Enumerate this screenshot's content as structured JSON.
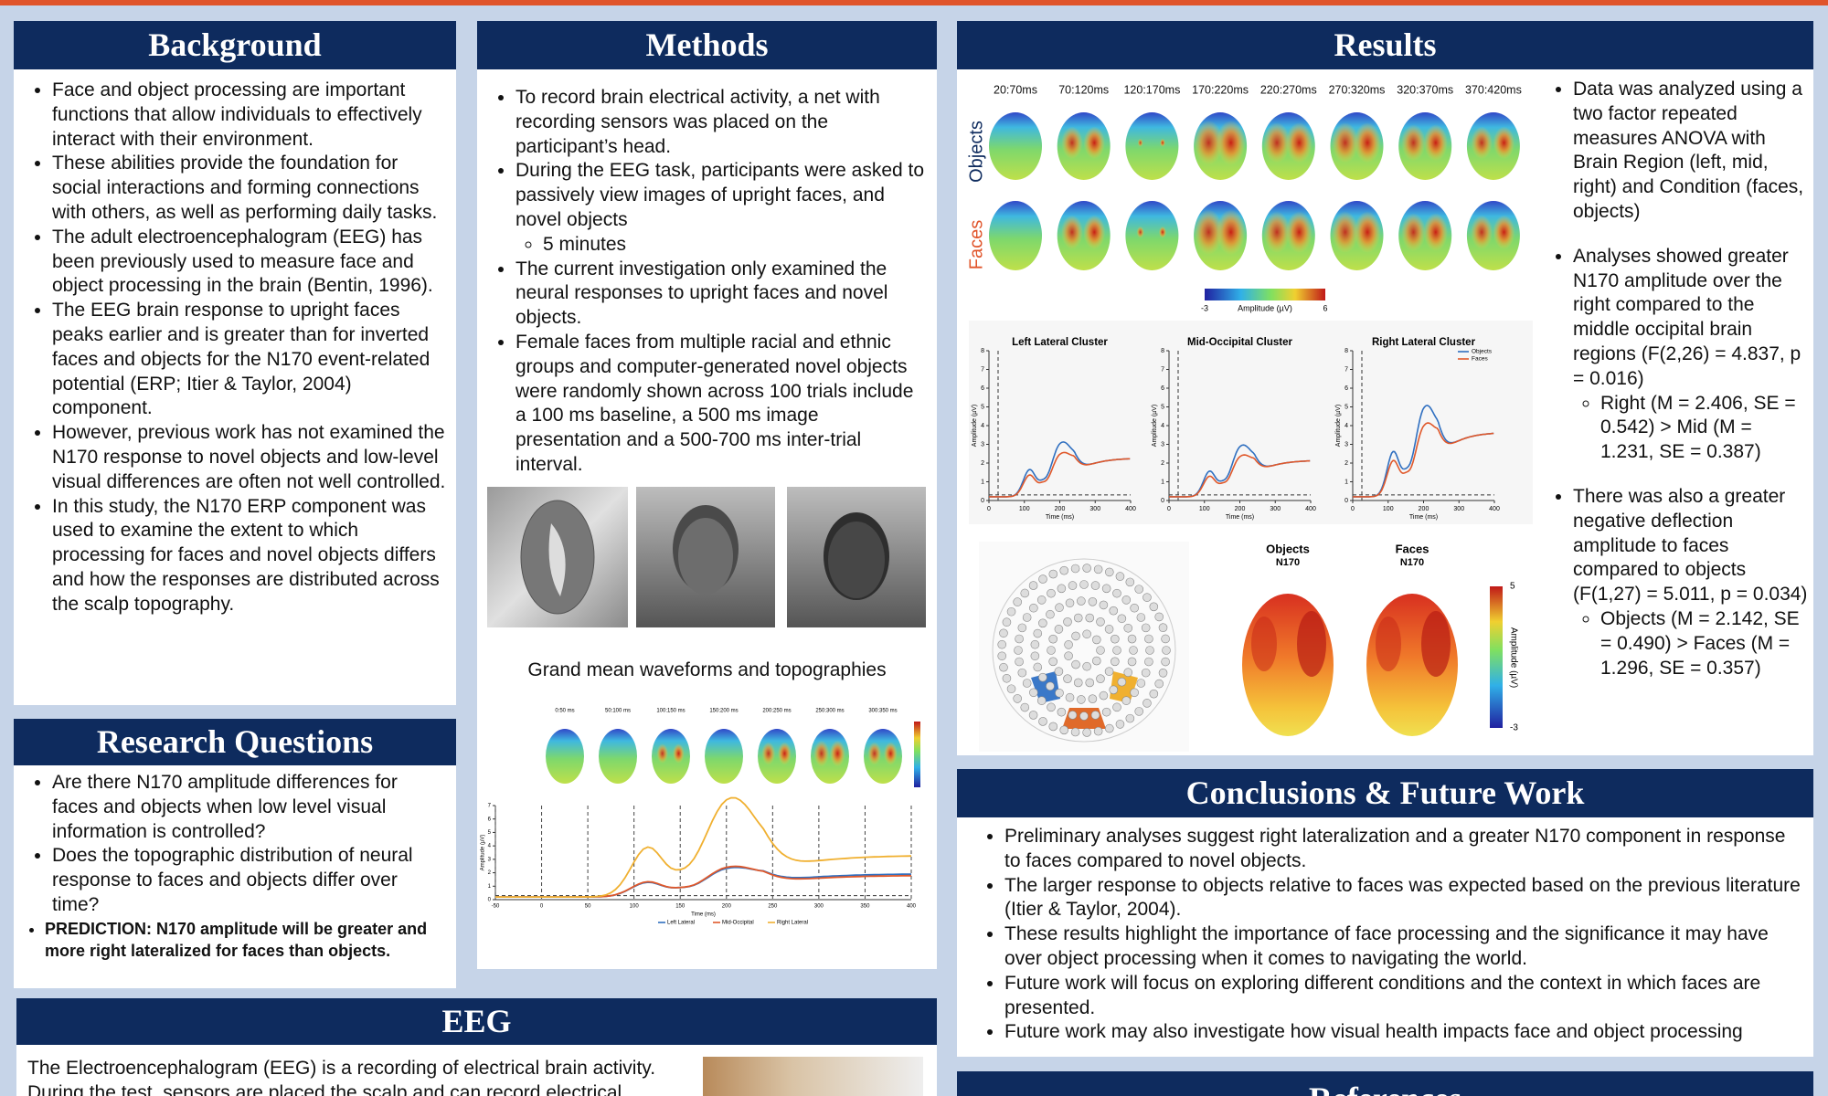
{
  "background": {
    "title": "Background",
    "items": [
      {
        "text": "Face and object processing are important functions that allow individuals to effectively interact with their environment."
      },
      {
        "text": "These abilities provide the foundation for social interactions and forming connections with others, as well as performing daily tasks."
      },
      {
        "text": "The adult electroencephalogram (EEG) has been previously used to measure face and object processing in the brain (Bentin, 1996)."
      },
      {
        "text": "The EEG brain response to upright faces peaks earlier and is greater than for inverted faces and objects for the N170 event-related potential (ERP; Itier & Taylor, 2004) component."
      },
      {
        "text": "However, previous work has not examined the N170 response to novel objects and low-level visual differences are often not well controlled."
      },
      {
        "text": "In this study, the N170 ERP component was used to examine the extent to which processing for faces and novel objects differs and how the responses are distributed across the scalp topography."
      }
    ]
  },
  "research_questions": {
    "title": "Research Questions",
    "items": [
      {
        "text": "Are there N170 amplitude differences for faces and objects when low level visual information is controlled?"
      },
      {
        "text": "Does the topographic distribution of neural response to faces and objects differ over time?"
      }
    ],
    "prediction": "PREDICTION: N170 amplitude will be greater and more right lateralized for faces than objects."
  },
  "methods": {
    "title": "Methods",
    "items": [
      {
        "text": "To record brain electrical activity, a net with recording sensors was placed on the participant’s head."
      },
      {
        "text": "During the EEG task, participants were asked to passively view images of upright faces, and novel objects",
        "sub": [
          "5 minutes"
        ]
      },
      {
        "text": "The current investigation only examined the neural responses to upright faces and novel objects."
      },
      {
        "text": "Female faces from multiple racial and ethnic groups and computer-generated novel objects were randomly shown across 100 trials include a 100 ms baseline, a 500 ms image presentation and a 500-700 ms inter-trial interval."
      }
    ],
    "figure_caption": "Grand mean waveforms and topographies",
    "figure": {
      "time_windows": [
        "0:50 ms",
        "50:100 ms",
        "100:150 ms",
        "150:200 ms",
        "200:250 ms",
        "250:300 ms",
        "300:350 ms"
      ],
      "legend": [
        "Left Lateral",
        "Mid-Occipital",
        "Right Lateral"
      ],
      "x_label": "Time (ms)",
      "y_label": "Amplitude (µV)",
      "xticks": [
        -50,
        0,
        50,
        100,
        150,
        200,
        250,
        300,
        350,
        400
      ],
      "yticks": [
        0,
        1,
        2,
        3,
        4,
        5,
        6,
        7
      ]
    }
  },
  "results": {
    "title": "Results",
    "items": [
      {
        "text": "Data was analyzed using a two factor repeated measures ANOVA with Brain Region (left, mid, right) and Condition (faces, objects)"
      },
      {
        "text": "Analyses showed greater N170 amplitude over the right compared to the middle occipital brain regions (F(2,26) = 4.837, p = 0.016)",
        "sub": [
          "Right (M = 2.406, SE = 0.542) > Mid (M = 1.231, SE = 0.387)"
        ]
      },
      {
        "text": "There was also a greater negative deflection amplitude to faces compared to objects (F(1,27) = 5.011, p = 0.034)",
        "sub": [
          "Objects (M = 2.142, SE = 0.490) > Faces (M = 1.296, SE = 0.357)"
        ]
      }
    ],
    "figure": {
      "time_windows": [
        "20:70ms",
        "70:120ms",
        "120:170ms",
        "170:220ms",
        "220:270ms",
        "270:320ms",
        "320:370ms",
        "370:420ms"
      ],
      "row_labels": [
        "Objects",
        "Faces"
      ],
      "colorbar": {
        "min": -3,
        "label": "Amplitude (µV)",
        "max": 6
      },
      "clusters": {
        "titles": [
          "Left Lateral Cluster",
          "Mid-Occipital Cluster",
          "Right Lateral Cluster"
        ],
        "legend": [
          "Objects",
          "Faces"
        ],
        "x_label": "Time (ms)",
        "y_label": "Amplitude (µV)",
        "xticks": [
          0,
          100,
          200,
          300,
          400
        ],
        "yticks": [
          0,
          1,
          2,
          3,
          4,
          5,
          6,
          7,
          8
        ]
      },
      "topo": {
        "labels": [
          {
            "title": "Objects",
            "sub": "N170"
          },
          {
            "title": "Faces",
            "sub": "N170"
          }
        ],
        "colorbar": {
          "max": 5,
          "label": "Amplitude (µV)",
          "min": -3
        }
      }
    }
  },
  "conclusions": {
    "title": "Conclusions & Future Work",
    "items": [
      {
        "text": "Preliminary analyses suggest right lateralization and a greater N170 component in response to faces compared to novel objects."
      },
      {
        "text": "The larger response to objects relative to faces was expected based on the previous literature (Itier & Taylor, 2004)."
      },
      {
        "text": "These results highlight the importance of face processing and the significance it may have over object processing when it comes to navigating the world."
      },
      {
        "text": "Future work will focus on exploring different conditions and the context in which faces are presented."
      },
      {
        "text": "Future work may also investigate how visual health impacts face and object processing"
      }
    ]
  },
  "eeg": {
    "title": "EEG",
    "text": "The Electroencephalogram (EEG) is a recording of electrical brain activity. During the test, sensors are placed the scalp and can record electrical"
  },
  "references": {
    "title": "References"
  }
}
